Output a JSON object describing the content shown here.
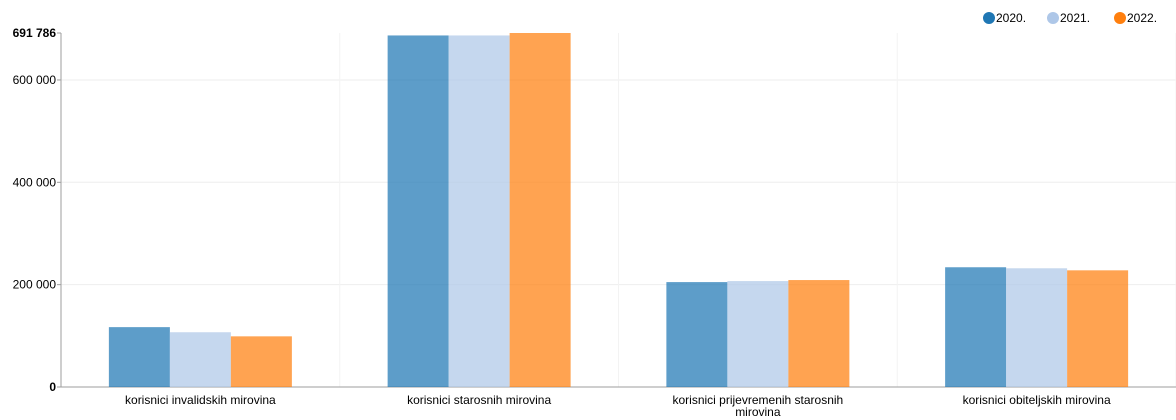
{
  "chart_data": {
    "type": "bar",
    "title": "",
    "xlabel": "",
    "ylabel": "",
    "ylim": [
      0,
      691786
    ],
    "y_ticks": [
      0,
      200000,
      400000,
      600000
    ],
    "y_tick_labels": [
      "0",
      "200 000",
      "400 000",
      "600 000"
    ],
    "y_max_label": "691 786",
    "grid": true,
    "legend_position": "top-right",
    "categories": [
      "korisnici invalidskih mirovina",
      "korisnici starosnih mirovina",
      "korisnici prijevremenih starosnih mirovina",
      "korisnici obiteljskih mirovina"
    ],
    "series": [
      {
        "name": "2020.",
        "color": "#1f77b4",
        "values": [
          117000,
          687000,
          205000,
          234000
        ]
      },
      {
        "name": "2021.",
        "color": "#aec7e8",
        "values": [
          107000,
          687000,
          207000,
          232000
        ]
      },
      {
        "name": "2022.",
        "color": "#ff7f0e",
        "values": [
          99000,
          691786,
          209000,
          228000
        ]
      }
    ]
  }
}
